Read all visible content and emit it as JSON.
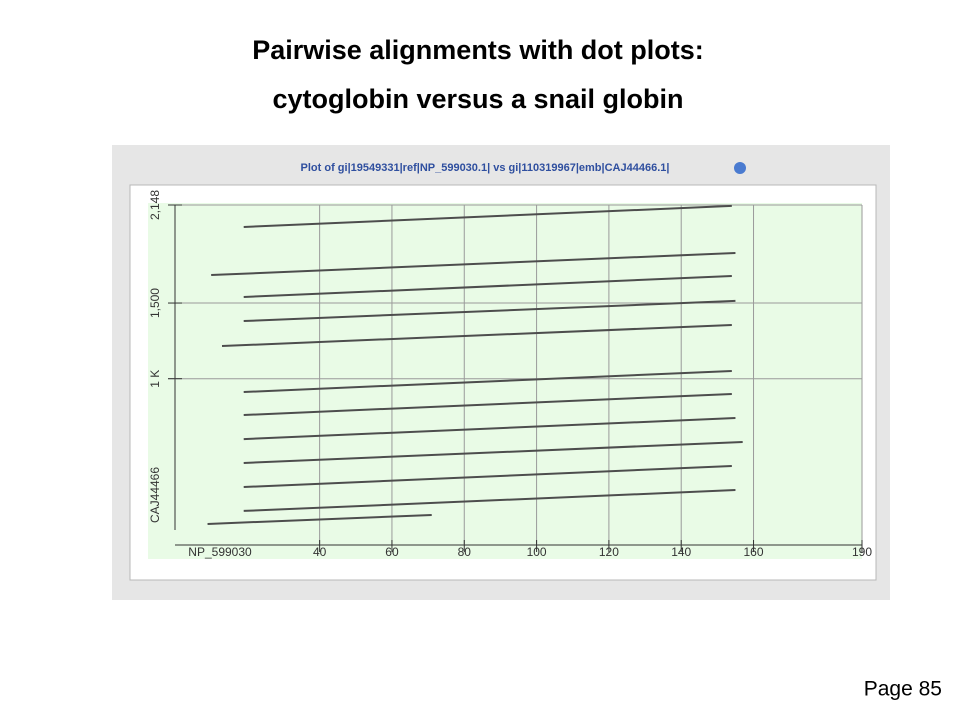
{
  "slide": {
    "title_lines": [
      "Pairwise alignments with dot plots:",
      "cytoglobin versus a snail globin"
    ],
    "page": "Page 85"
  },
  "chart_data": {
    "type": "line",
    "title": "Plot of gi|19549331|ref|NP_599030.1| vs gi|110319967|emb|CAJ44466.1|",
    "xlabel": "NP_599030",
    "ylabel": "CAJ44466",
    "xlim": [
      0,
      190
    ],
    "ylim": [
      0,
      2148
    ],
    "xticks": [
      40,
      60,
      80,
      100,
      120,
      140,
      160,
      190
    ],
    "yticks": [
      {
        "value": 1000,
        "label": "1 K"
      },
      {
        "value": 1500,
        "label": "1,500"
      },
      {
        "value": 2148,
        "label": "2,148"
      }
    ],
    "grid": true,
    "color": "#4d4d4d",
    "series": [
      {
        "x": [
          19,
          154
        ],
        "values": [
          2003,
          2142
        ]
      },
      {
        "x": [
          10,
          155
        ],
        "values": [
          1685,
          1831
        ]
      },
      {
        "x": [
          19,
          154
        ],
        "values": [
          1540,
          1679
        ]
      },
      {
        "x": [
          19,
          155
        ],
        "values": [
          1381,
          1514
        ]
      },
      {
        "x": [
          13,
          154
        ],
        "values": [
          1216,
          1355
        ]
      },
      {
        "x": [
          19,
          154
        ],
        "values": [
          912,
          1051
        ]
      },
      {
        "x": [
          19,
          154
        ],
        "values": [
          760,
          899
        ]
      },
      {
        "x": [
          19,
          155
        ],
        "values": [
          601,
          740
        ]
      },
      {
        "x": [
          19,
          157
        ],
        "values": [
          443,
          582
        ]
      },
      {
        "x": [
          19,
          154
        ],
        "values": [
          284,
          423
        ]
      },
      {
        "x": [
          19,
          155
        ],
        "values": [
          126,
          264
        ]
      },
      {
        "x": [
          9,
          71
        ],
        "values": [
          40,
          99
        ]
      }
    ]
  }
}
